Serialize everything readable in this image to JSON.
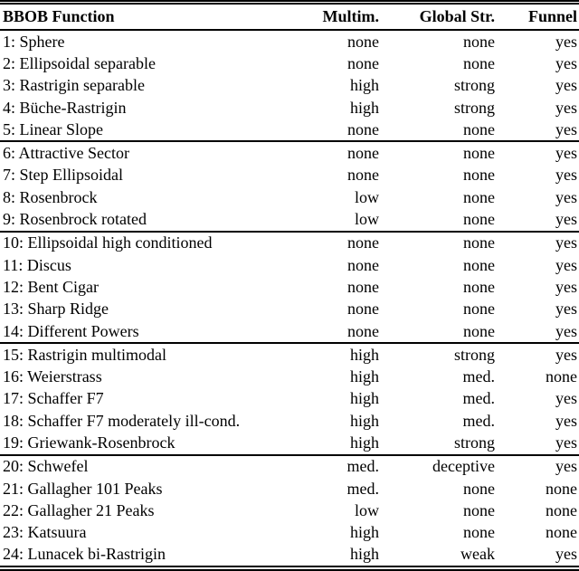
{
  "page": {
    "background_color": "#ffffff",
    "text_color": "#000000",
    "rule_color": "#000000"
  },
  "table": {
    "headers": [
      {
        "label": "BBOB Function",
        "align": "left"
      },
      {
        "label": "Multim.",
        "align": "right"
      },
      {
        "label": "Global Str.",
        "align": "right"
      },
      {
        "label": "Funnel",
        "align": "right"
      }
    ],
    "groups": [
      {
        "rows": [
          [
            "1: Sphere",
            "none",
            "none",
            "yes"
          ],
          [
            "2: Ellipsoidal separable",
            "none",
            "none",
            "yes"
          ],
          [
            "3: Rastrigin separable",
            "high",
            "strong",
            "yes"
          ],
          [
            "4: Büche-Rastrigin",
            "high",
            "strong",
            "yes"
          ],
          [
            "5: Linear Slope",
            "none",
            "none",
            "yes"
          ]
        ]
      },
      {
        "rows": [
          [
            "6: Attractive Sector",
            "none",
            "none",
            "yes"
          ],
          [
            "7: Step Ellipsoidal",
            "none",
            "none",
            "yes"
          ],
          [
            "8: Rosenbrock",
            "low",
            "none",
            "yes"
          ],
          [
            "9: Rosenbrock rotated",
            "low",
            "none",
            "yes"
          ]
        ]
      },
      {
        "rows": [
          [
            "10: Ellipsoidal high conditioned",
            "none",
            "none",
            "yes"
          ],
          [
            "11: Discus",
            "none",
            "none",
            "yes"
          ],
          [
            "12: Bent Cigar",
            "none",
            "none",
            "yes"
          ],
          [
            "13: Sharp Ridge",
            "none",
            "none",
            "yes"
          ],
          [
            "14: Different Powers",
            "none",
            "none",
            "yes"
          ]
        ]
      },
      {
        "rows": [
          [
            "15: Rastrigin multimodal",
            "high",
            "strong",
            "yes"
          ],
          [
            "16: Weierstrass",
            "high",
            "med.",
            "none"
          ],
          [
            "17: Schaffer F7",
            "high",
            "med.",
            "yes"
          ],
          [
            "18: Schaffer F7 moderately ill-cond.",
            "high",
            "med.",
            "yes"
          ],
          [
            "19: Griewank-Rosenbrock",
            "high",
            "strong",
            "yes"
          ]
        ]
      },
      {
        "rows": [
          [
            "20: Schwefel",
            "med.",
            "deceptive",
            "yes"
          ],
          [
            "21: Gallagher 101 Peaks",
            "med.",
            "none",
            "none"
          ],
          [
            "22: Gallagher 21 Peaks",
            "low",
            "none",
            "none"
          ],
          [
            "23: Katsuura",
            "high",
            "none",
            "none"
          ],
          [
            "24: Lunacek bi-Rastrigin",
            "high",
            "weak",
            "yes"
          ]
        ]
      }
    ]
  }
}
